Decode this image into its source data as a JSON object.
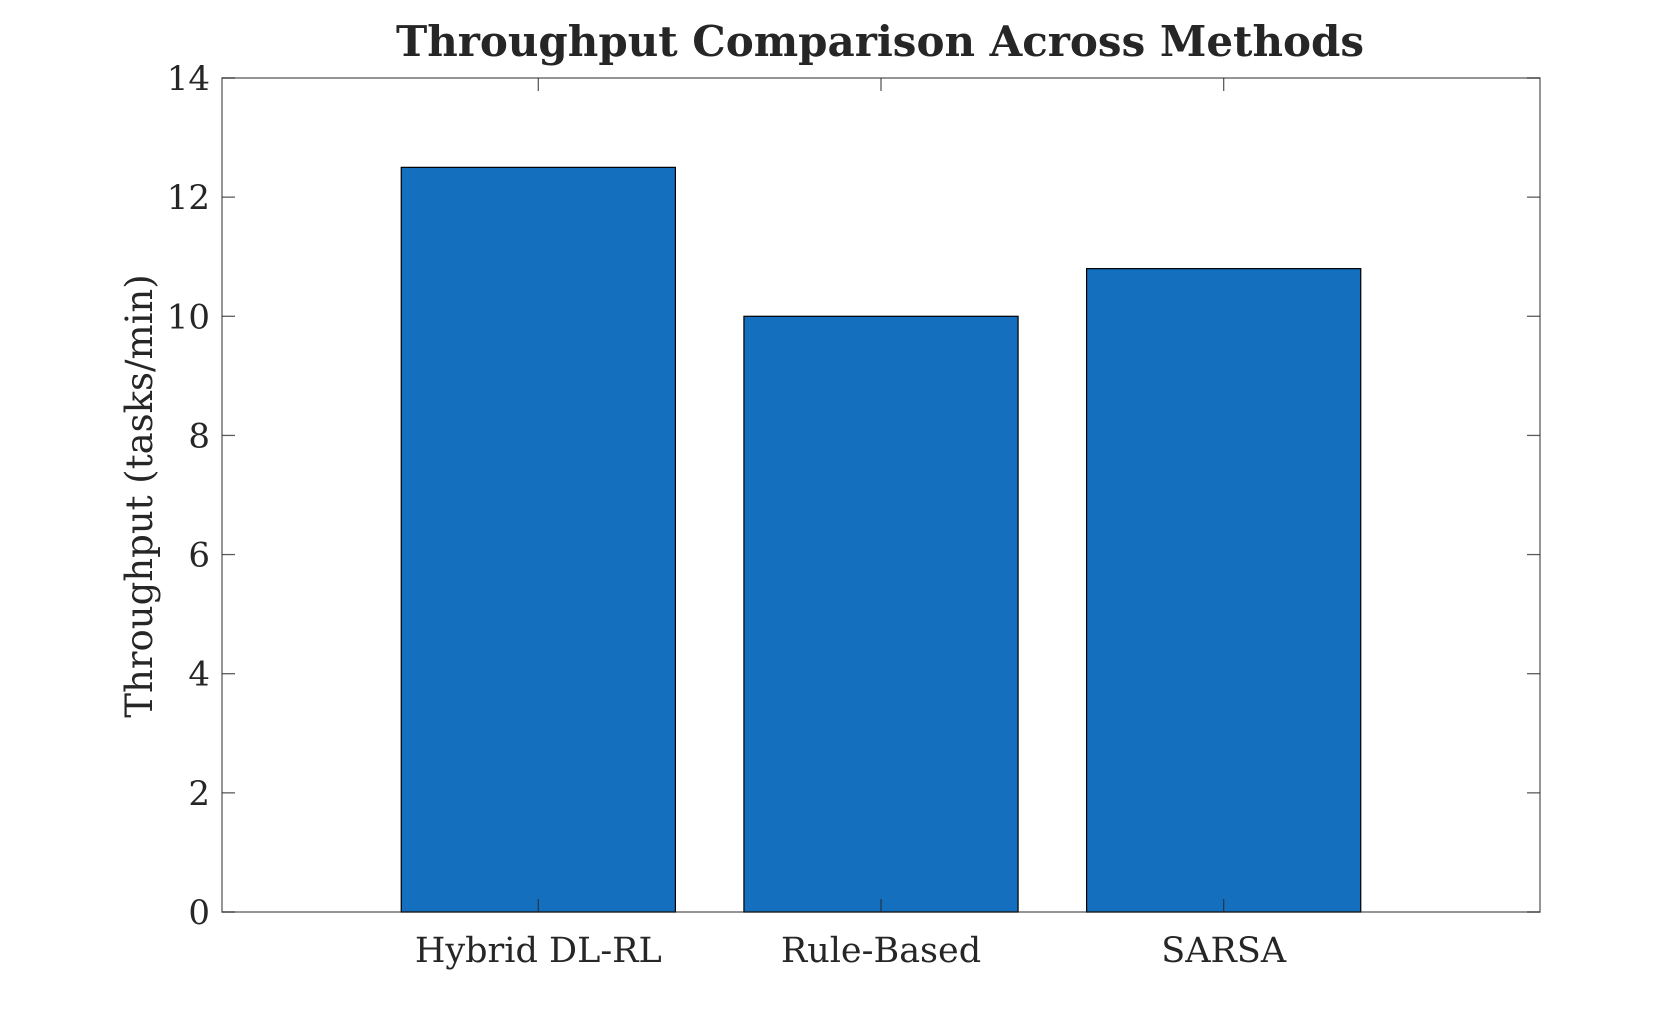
{
  "chart_data": {
    "type": "bar",
    "title": "Throughput Comparison Across Methods",
    "xlabel": "",
    "ylabel": "Throughput (tasks/min)",
    "categories": [
      "Hybrid DL-RL",
      "Rule-Based",
      "SARSA"
    ],
    "values": [
      12.5,
      10.0,
      10.8
    ],
    "ylim": [
      0,
      14
    ],
    "yticks": [
      0,
      2,
      4,
      6,
      8,
      10,
      12,
      14
    ],
    "ytick_labels": [
      "0",
      "2",
      "4",
      "6",
      "8",
      "10",
      "12",
      "14"
    ],
    "xlim": [
      0,
      5
    ],
    "bar_color": "#1470BE",
    "grid": false,
    "legend": "none"
  }
}
